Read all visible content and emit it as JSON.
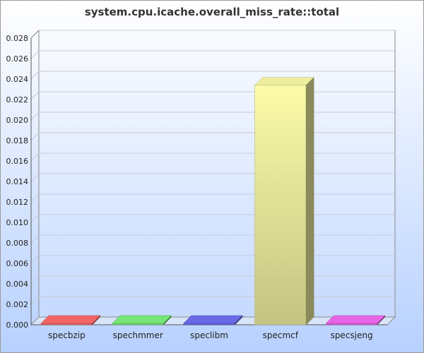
{
  "chart_data": {
    "type": "bar",
    "title": "system.cpu.icache.overall_miss_rate::total",
    "categories": [
      "specbzip",
      "spechmmer",
      "speclibm",
      "specmcf",
      "specsjeng"
    ],
    "values": [
      0.0,
      0.0001,
      0.0,
      0.0234,
      0.0
    ],
    "ylim": [
      0,
      0.028
    ],
    "yticks": [
      "0.000",
      "0.002",
      "0.004",
      "0.006",
      "0.008",
      "0.010",
      "0.012",
      "0.014",
      "0.016",
      "0.018",
      "0.020",
      "0.022",
      "0.024",
      "0.026",
      "0.028"
    ],
    "grid": true,
    "colors": [
      "#ff6b6b",
      "#7cf07c",
      "#6f6ff2",
      "#fbfba8",
      "#f26bf2"
    ]
  }
}
